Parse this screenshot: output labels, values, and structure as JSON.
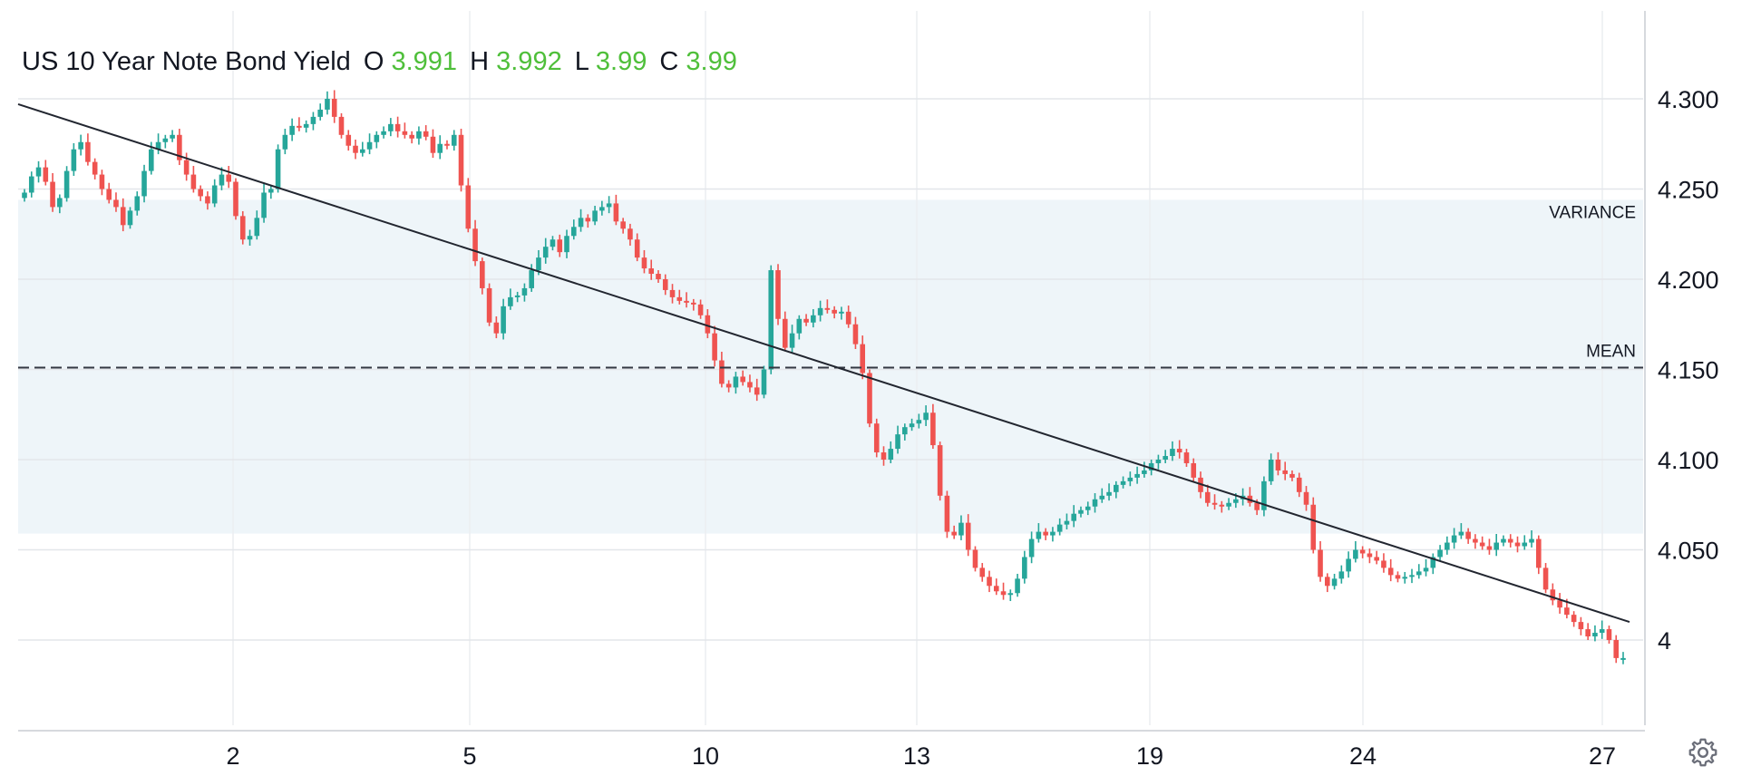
{
  "legend": {
    "title": "US 10 Year Note Bond Yield",
    "o_label": "O",
    "o_value": "3.991",
    "h_label": "H",
    "h_value": "3.992",
    "l_label": "L",
    "l_value": "3.99",
    "c_label": "C",
    "c_value": "3.99"
  },
  "colors": {
    "up": "#26a69a",
    "down": "#ef5350",
    "ohlc_value": "#4fbf3a",
    "band": "#eef5f9"
  },
  "settings_icon": "gear-icon",
  "chart_data": {
    "type": "candlestick",
    "x_tick_labels": [
      "2",
      "5",
      "10",
      "13",
      "19",
      "24",
      "27"
    ],
    "y_tick_labels": [
      "4.300",
      "4.250",
      "4.200",
      "4.150",
      "4.100",
      "4.050",
      "4"
    ],
    "y_ticks": [
      4.3,
      4.25,
      4.2,
      4.15,
      4.1,
      4.05,
      4.0
    ],
    "ylim": [
      3.953,
      4.335
    ],
    "grid": true,
    "band": {
      "label": "VARIANCE",
      "from": 4.059,
      "to": 4.244
    },
    "mean_line": {
      "label": "MEAN",
      "value": 4.151
    },
    "trend_line": {
      "start": 4.297,
      "end": 4.01
    },
    "series": [
      {
        "name": "close",
        "values": [
          4.248,
          4.257,
          4.262,
          4.254,
          4.24,
          4.245,
          4.26,
          4.272,
          4.276,
          4.265,
          4.258,
          4.25,
          4.244,
          4.24,
          4.23,
          4.238,
          4.246,
          4.26,
          4.272,
          4.276,
          4.278,
          4.28,
          4.266,
          4.258,
          4.25,
          4.246,
          4.242,
          4.252,
          4.258,
          4.254,
          4.235,
          4.222,
          4.224,
          4.234,
          4.248,
          4.25,
          4.272,
          4.28,
          4.285,
          4.284,
          4.286,
          4.29,
          4.294,
          4.3,
          4.29,
          4.28,
          4.274,
          4.27,
          4.272,
          4.276,
          4.28,
          4.282,
          4.286,
          4.282,
          4.28,
          4.278,
          4.282,
          4.279,
          4.27,
          4.275,
          4.274,
          4.28,
          4.252,
          4.228,
          4.21,
          4.195,
          4.176,
          4.17,
          4.185,
          4.19,
          4.191,
          4.195,
          4.205,
          4.212,
          4.218,
          4.222,
          4.215,
          4.224,
          4.229,
          4.234,
          4.232,
          4.238,
          4.24,
          4.242,
          4.232,
          4.228,
          4.222,
          4.212,
          4.206,
          4.203,
          4.2,
          4.194,
          4.19,
          4.188,
          4.187,
          4.186,
          4.18,
          4.17,
          4.155,
          4.142,
          4.14,
          4.146,
          4.143,
          4.14,
          4.136,
          4.15,
          4.205,
          4.178,
          4.162,
          4.17,
          4.178,
          4.176,
          4.18,
          4.184,
          4.183,
          4.181,
          4.182,
          4.175,
          4.164,
          4.148,
          4.12,
          4.104,
          4.1,
          4.106,
          4.114,
          4.118,
          4.12,
          4.122,
          4.126,
          4.108,
          4.08,
          4.06,
          4.058,
          4.065,
          4.05,
          4.04,
          4.035,
          4.03,
          4.027,
          4.025,
          4.026,
          4.034,
          4.046,
          4.056,
          4.06,
          4.058,
          4.06,
          4.064,
          4.066,
          4.07,
          4.072,
          4.074,
          4.078,
          4.08,
          4.082,
          4.086,
          4.088,
          4.09,
          4.092,
          4.094,
          4.098,
          4.1,
          4.102,
          4.106,
          4.104,
          4.098,
          4.09,
          4.082,
          4.076,
          4.075,
          4.074,
          4.076,
          4.078,
          4.08,
          4.076,
          4.072,
          4.088,
          4.1,
          4.094,
          4.092,
          4.09,
          4.082,
          4.075,
          4.05,
          4.035,
          4.03,
          4.034,
          4.038,
          4.045,
          4.05,
          4.048,
          4.046,
          4.044,
          4.04,
          4.036,
          4.034,
          4.035,
          4.036,
          4.038,
          4.04,
          4.046,
          4.05,
          4.054,
          4.058,
          4.06,
          4.056,
          4.054,
          4.052,
          4.05,
          4.054,
          4.056,
          4.054,
          4.052,
          4.054,
          4.056,
          4.04,
          4.028,
          4.022,
          4.018,
          4.014,
          4.01,
          4.006,
          4.002,
          4.004,
          4.006,
          4.0,
          3.99,
          3.99
        ]
      }
    ]
  }
}
